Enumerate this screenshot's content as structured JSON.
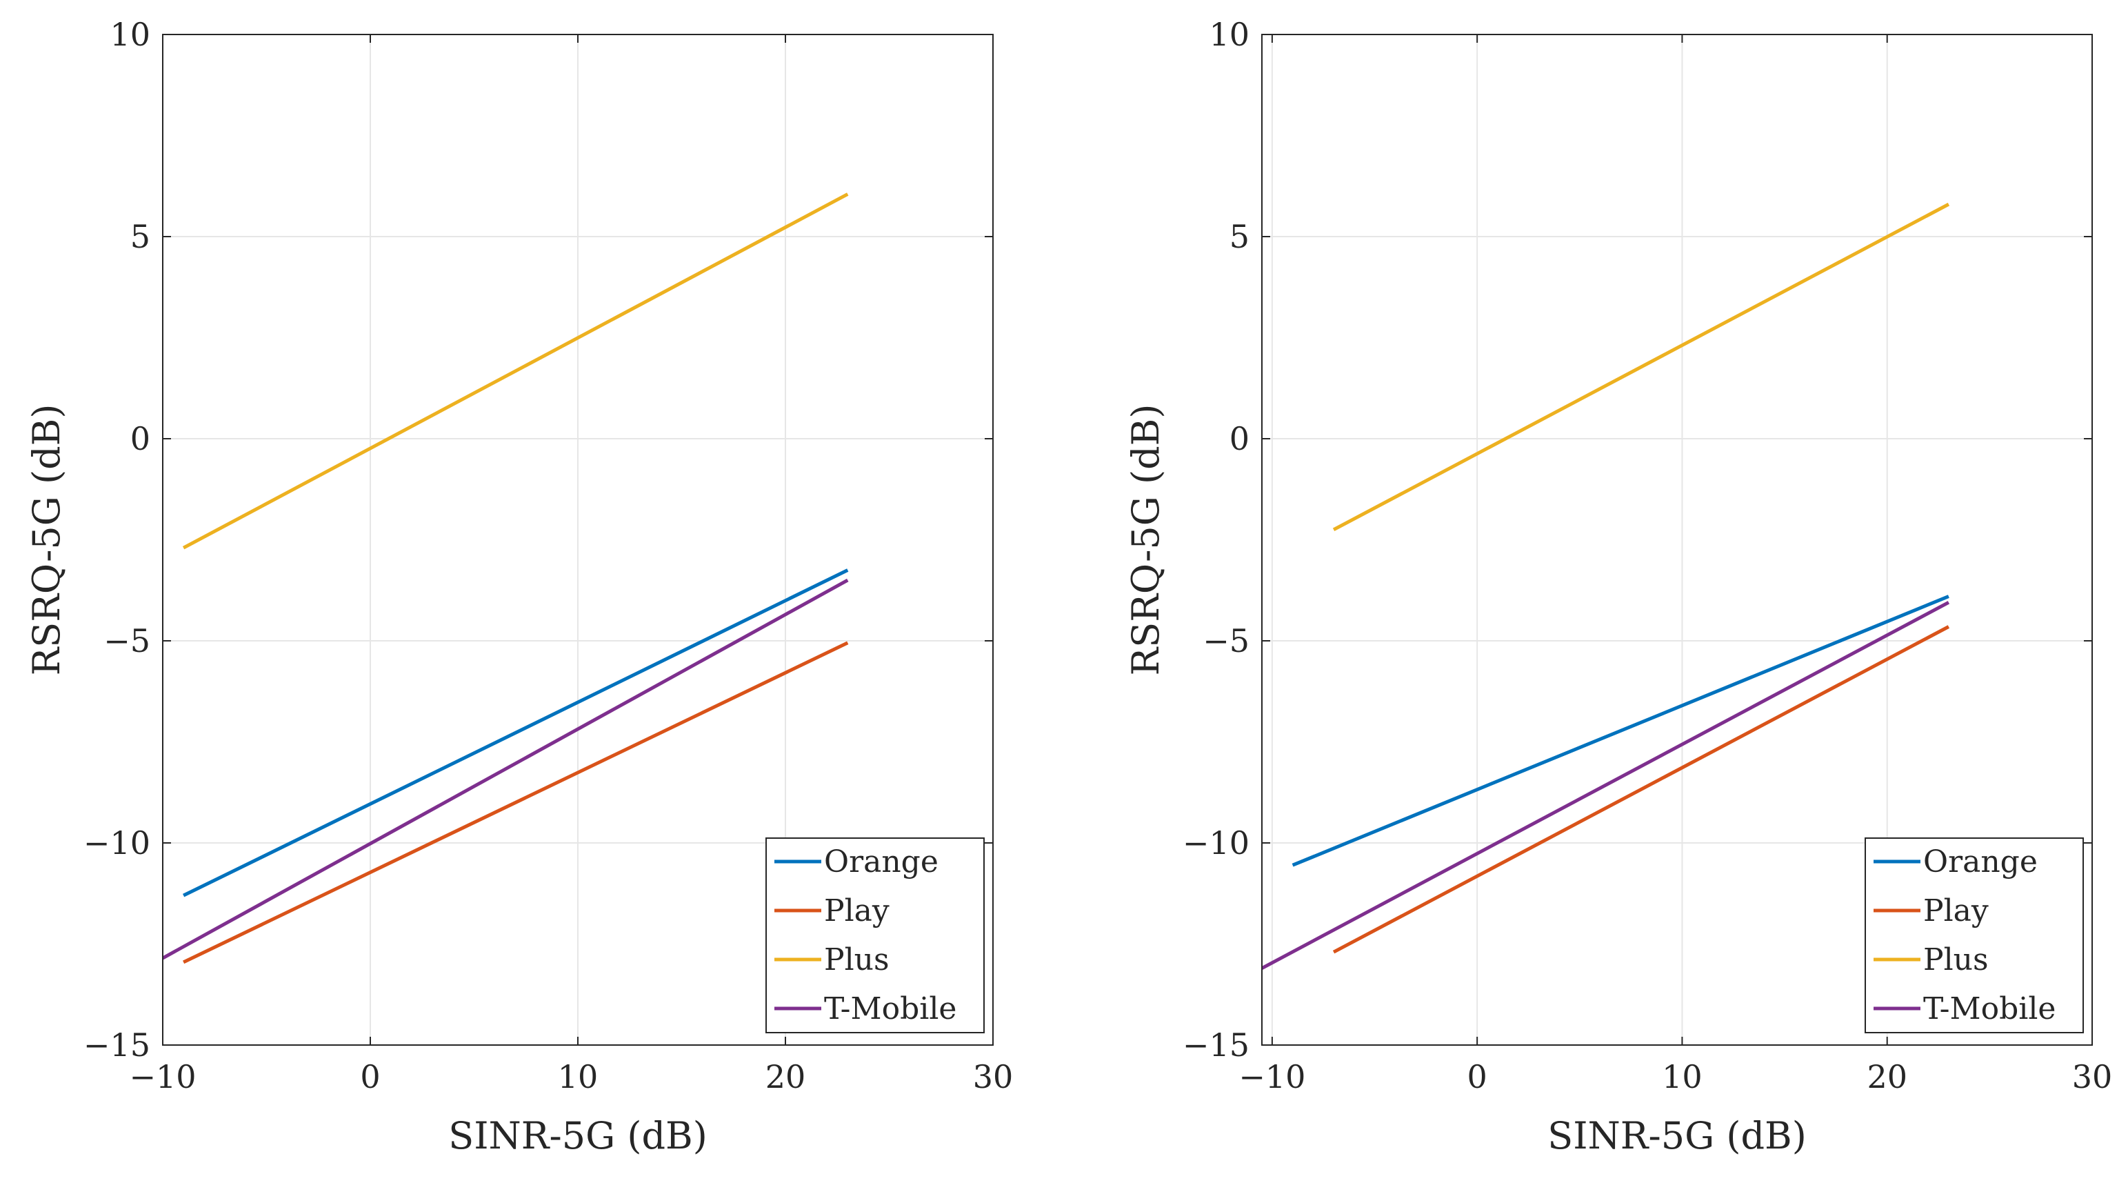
{
  "colors": {
    "Orange": "#0072BD",
    "Play": "#D95319",
    "Plus": "#EDB120",
    "T-Mobile": "#7E2F8E",
    "grid": "#e6e6e6",
    "axis": "#262626"
  },
  "chart_data": [
    {
      "type": "line",
      "title": "",
      "xlabel": "SINR-5G  (dB)",
      "ylabel": "RSRQ-5G  (dB)",
      "xlim": [
        -10,
        30
      ],
      "ylim": [
        -15,
        10
      ],
      "xticks": [
        -10,
        0,
        10,
        20,
        30
      ],
      "yticks": [
        -15,
        -10,
        -5,
        0,
        5,
        10
      ],
      "xtick_labels": [
        "−10",
        "0",
        "10",
        "20",
        "30"
      ],
      "ytick_labels": [
        "−15",
        "−10",
        "−5",
        "0",
        "5",
        "10"
      ],
      "grid": true,
      "legend_position": "bottom-right",
      "series": [
        {
          "name": "Orange",
          "x": [
            -9,
            23
          ],
          "y": [
            -11.3,
            -3.25
          ]
        },
        {
          "name": "Play",
          "x": [
            -9,
            23
          ],
          "y": [
            -12.95,
            -5.05
          ]
        },
        {
          "name": "Plus",
          "x": [
            -9,
            23
          ],
          "y": [
            -2.7,
            6.05
          ]
        },
        {
          "name": "T-Mobile",
          "x": [
            -10,
            23
          ],
          "y": [
            -12.85,
            -3.5
          ]
        }
      ]
    },
    {
      "type": "line",
      "title": "",
      "xlabel": "SINR-5G  (dB)",
      "ylabel": "RSRQ-5G  (dB)",
      "xlim": [
        -10.5,
        30
      ],
      "ylim": [
        -15,
        10
      ],
      "xticks": [
        -10,
        0,
        10,
        20,
        30
      ],
      "yticks": [
        -15,
        -10,
        -5,
        0,
        5,
        10
      ],
      "xtick_labels": [
        "−10",
        "0",
        "10",
        "20",
        "30"
      ],
      "ytick_labels": [
        "−15",
        "−10",
        "−5",
        "0",
        "5",
        "10"
      ],
      "grid": true,
      "legend_position": "bottom-right",
      "series": [
        {
          "name": "Orange",
          "x": [
            -9,
            23
          ],
          "y": [
            -10.55,
            -3.9
          ]
        },
        {
          "name": "Play",
          "x": [
            -7,
            23
          ],
          "y": [
            -12.7,
            -4.65
          ]
        },
        {
          "name": "Plus",
          "x": [
            -7,
            23
          ],
          "y": [
            -2.25,
            5.8
          ]
        },
        {
          "name": "T-Mobile",
          "x": [
            -10.5,
            23
          ],
          "y": [
            -13.1,
            -4.05
          ]
        }
      ]
    }
  ]
}
